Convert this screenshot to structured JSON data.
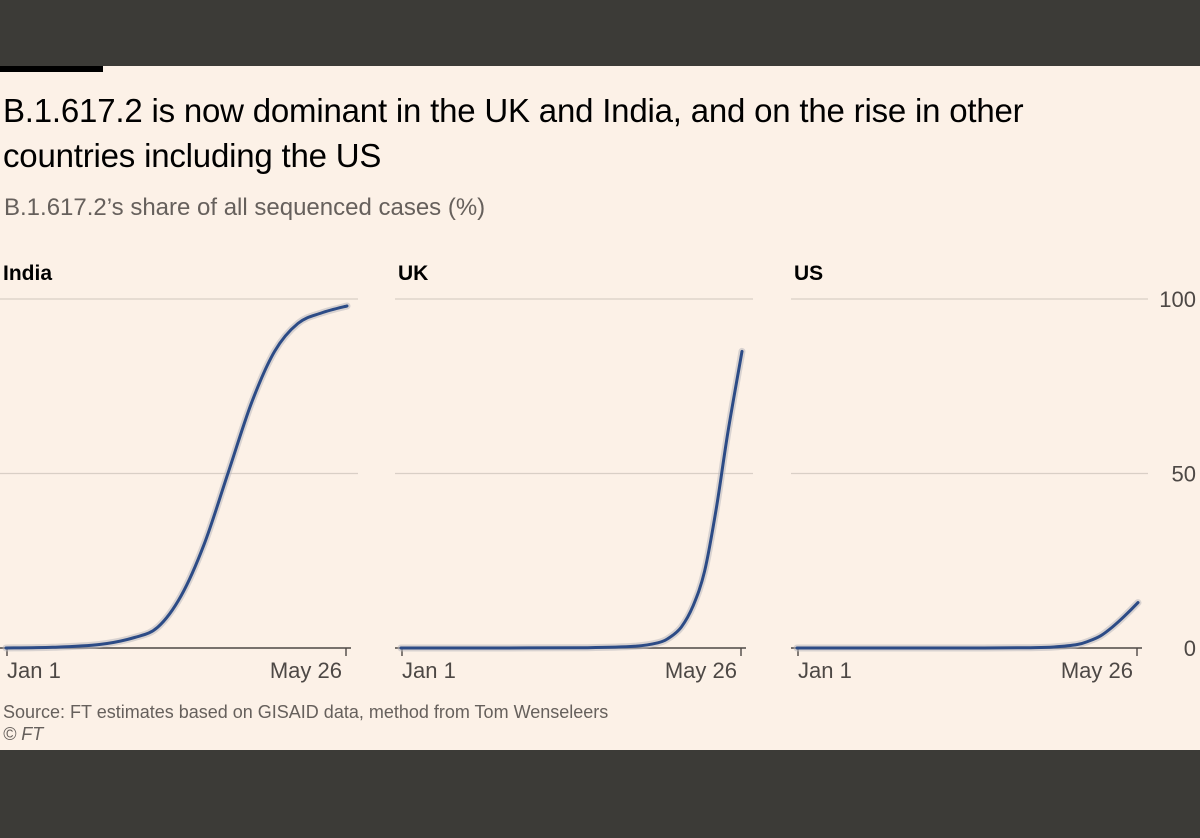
{
  "header": {
    "title": "B.1.617.2 is now dominant in the UK and India, and on the rise in other countries including the US",
    "subtitle": "B.1.617.2’s share of all sequenced cases (%)"
  },
  "footer": {
    "source": "Source: FT estimates based on GISAID data, method from Tom Wenseleers",
    "credit": "© FT"
  },
  "colors": {
    "background": "#fcf1e7",
    "frame": "#3c3b37",
    "line": "#2c4b86",
    "band": "#b9b8bd",
    "grid": "#d9cfc6"
  },
  "chart_data": {
    "type": "line",
    "title": "B.1.617.2’s share of all sequenced cases (%)",
    "ylabel": "%",
    "ylim": [
      0,
      100
    ],
    "yticks": [
      0,
      50,
      100
    ],
    "x_tick_labels": [
      "Jan 1",
      "May 26"
    ],
    "x_unit": "days since Jan 1",
    "xlim": [
      0,
      146
    ],
    "panels": [
      {
        "name": "India",
        "series": [
          {
            "name": "B.1.617.2 share",
            "x": [
              0,
              20,
              40,
              55,
              65,
              75,
              85,
              95,
              105,
              115,
              125,
              135,
              146
            ],
            "y": [
              0,
              0.2,
              1,
              3,
              6,
              15,
              30,
              50,
              70,
              85,
              93,
              96,
              98
            ]
          }
        ]
      },
      {
        "name": "UK",
        "series": [
          {
            "name": "B.1.617.2 share",
            "x": [
              0,
              40,
              80,
              100,
              110,
              115,
              120,
              125,
              130,
              135,
              140,
              146
            ],
            "y": [
              0,
              0,
              0.1,
              0.5,
              1.5,
              3,
              6,
              12,
              22,
              40,
              62,
              85
            ]
          }
        ]
      },
      {
        "name": "US",
        "series": [
          {
            "name": "B.1.617.2 share",
            "x": [
              0,
              40,
              80,
              100,
              110,
              120,
              125,
              130,
              135,
              140,
              146
            ],
            "y": [
              0,
              0,
              0,
              0.1,
              0.3,
              1,
              2,
              3.5,
              6,
              9,
              13
            ]
          }
        ]
      }
    ]
  }
}
